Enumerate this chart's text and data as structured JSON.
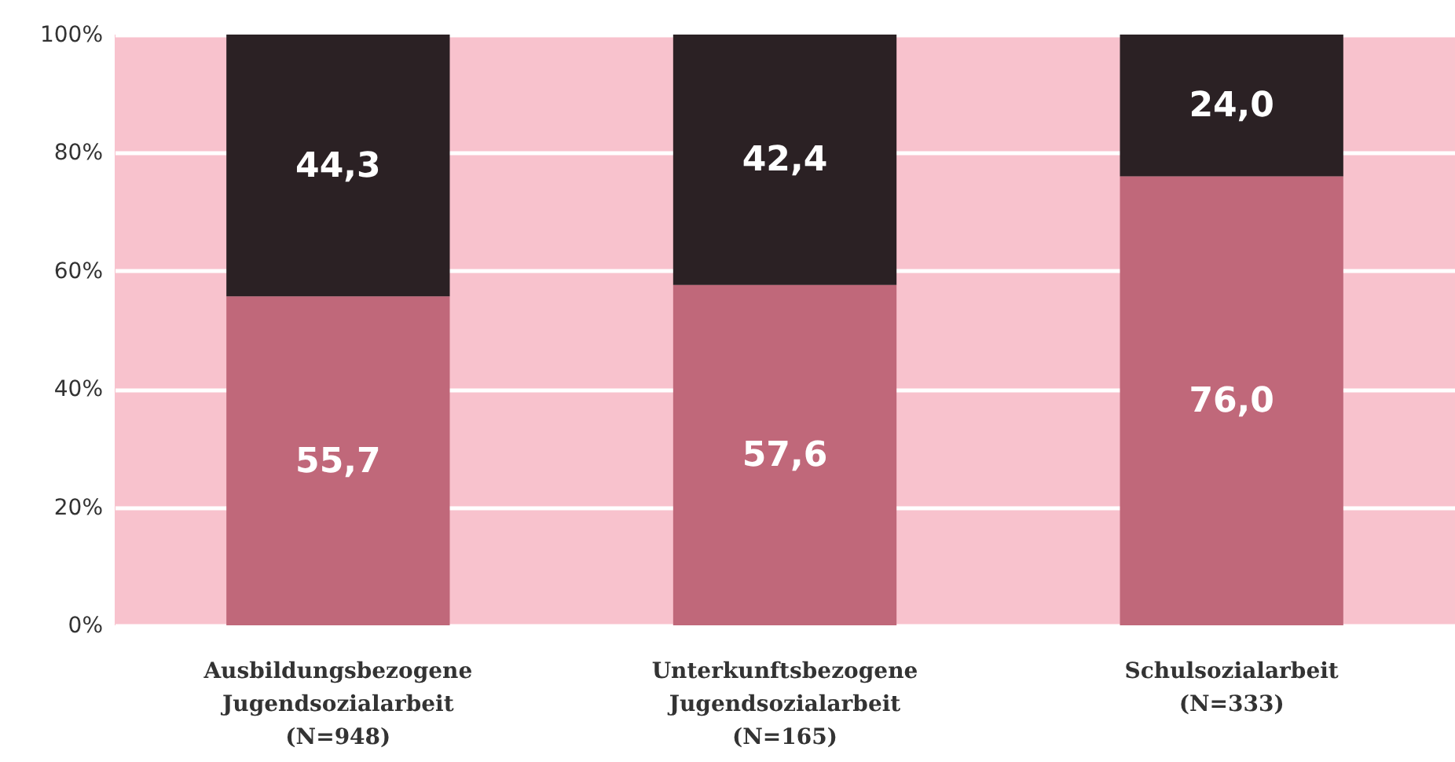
{
  "chart_data": {
    "type": "bar",
    "stacked": true,
    "categories": [
      "Ausbildungsbezogene\nJugendsozialarbeit\n(N=948)",
      "Unterkunftsbezogene\nJugendsozialarbeit\n(N=165)",
      "Schulsozialarbeit\n(N=333)"
    ],
    "series": [
      {
        "color": "#c0687a",
        "values": [
          55.7,
          57.6,
          76.0
        ],
        "value_labels": [
          "55,7",
          "57,6",
          "76,0"
        ]
      },
      {
        "color": "#2b2124",
        "values": [
          44.3,
          42.4,
          24.0
        ],
        "value_labels": [
          "44,3",
          "42,4",
          "24,0"
        ]
      }
    ],
    "ylim": [
      0,
      100
    ],
    "yticks": [
      {
        "value": 0,
        "label": "0%"
      },
      {
        "value": 20,
        "label": "20%"
      },
      {
        "value": 40,
        "label": "40%"
      },
      {
        "value": 60,
        "label": "60%"
      },
      {
        "value": 80,
        "label": "80%"
      },
      {
        "value": 100,
        "label": "100%"
      }
    ],
    "grid": "y"
  }
}
